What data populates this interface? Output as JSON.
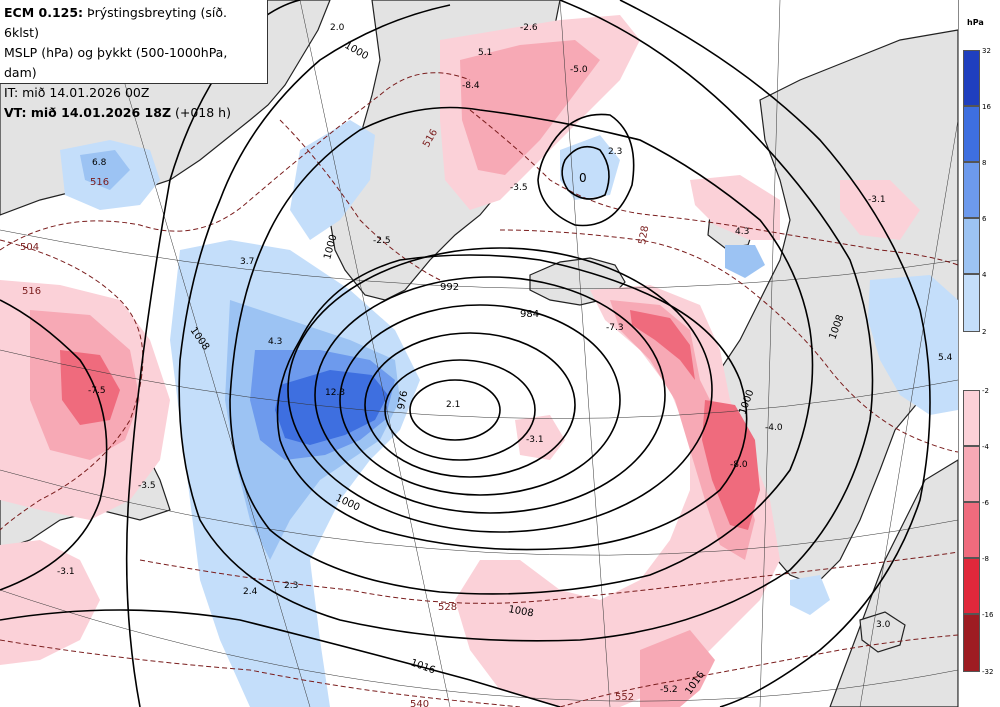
{
  "header": {
    "line1_bold": "ECM 0.125:",
    "line1_rest": " Þrýstingsbreyting (síð. 6klst)",
    "line2": "MSLP (hPa) og þykkt (500-1000hPa, dam)",
    "line3": "IT: mið 14.01.2026 00Z",
    "line4_bold": "VT: mið 14.01.2026 18Z",
    "line4_rest": " (+018 h)"
  },
  "legend": {
    "unit": "hPa",
    "positive_levels": [
      "32",
      "16",
      "8",
      "6",
      "4",
      "2"
    ],
    "negative_levels": [
      "-2",
      "-4",
      "-6",
      "-8",
      "-16",
      "-32"
    ],
    "positive_colors": [
      "#1f3fbf",
      "#3e6fe0",
      "#6d9aed",
      "#9cc3f3",
      "#c4defa"
    ],
    "negative_colors": [
      "#fbd1d8",
      "#f7a9b5",
      "#ef6b7d",
      "#e0283b",
      "#9e1c22"
    ]
  },
  "isobars": [
    "1000",
    "992",
    "984",
    "976",
    "1000",
    "1008",
    "1016",
    "1016",
    "1008",
    "1000",
    "1000",
    "1008"
  ],
  "thickness": [
    "516",
    "504",
    "516",
    "528",
    "528",
    "516",
    "540",
    "552"
  ],
  "change_labels": [
    "2.0",
    "-2.6",
    "5.1",
    "-8.4",
    "-5.0",
    "2.3",
    "6.8",
    "-3.5",
    "-2.5",
    "3.7",
    "4.3",
    "-3.1",
    "4.3",
    "-7.3",
    "-7.5",
    "12.3",
    "2.1",
    "-3.1",
    "-4.0",
    "-8.0",
    "-3.5",
    "-3.1",
    "2.4",
    "2.3",
    "5.4",
    "-5.2",
    "3.0"
  ],
  "center_labels": [
    "0"
  ]
}
